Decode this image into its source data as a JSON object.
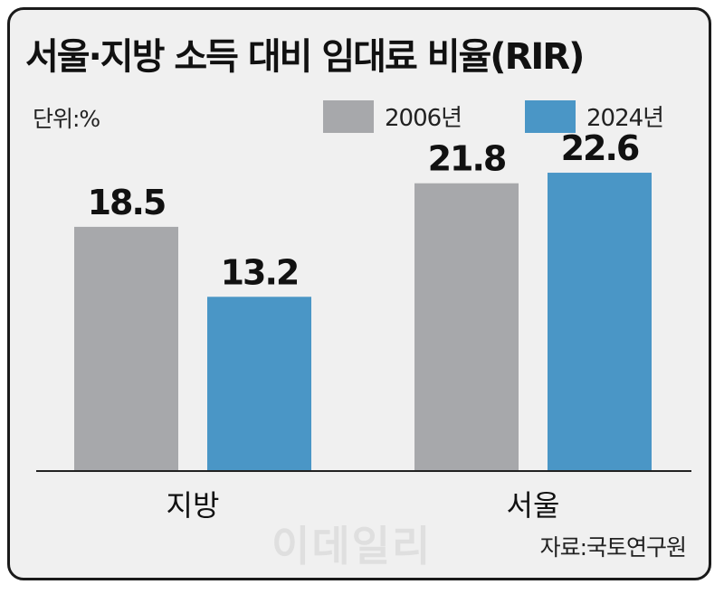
{
  "chart_data": {
    "type": "bar",
    "title": "서울·지방 소득 대비 임대료 비율(RIR)",
    "unit_label": "단위:%",
    "categories": [
      "지방",
      "서울"
    ],
    "series": [
      {
        "name": "2006년",
        "values": [
          18.5,
          21.8
        ],
        "color": "#a7a8ab"
      },
      {
        "name": "2024년",
        "values": [
          13.2,
          22.6
        ],
        "color": "#4a96c6"
      }
    ],
    "value_labels": [
      [
        "18.5",
        "21.8"
      ],
      [
        "13.2",
        "22.6"
      ]
    ],
    "ylim": [
      0,
      30
    ],
    "legend_position": "top-right",
    "grid": false
  },
  "source": "자료:국토연구원",
  "watermark": "이데일리"
}
